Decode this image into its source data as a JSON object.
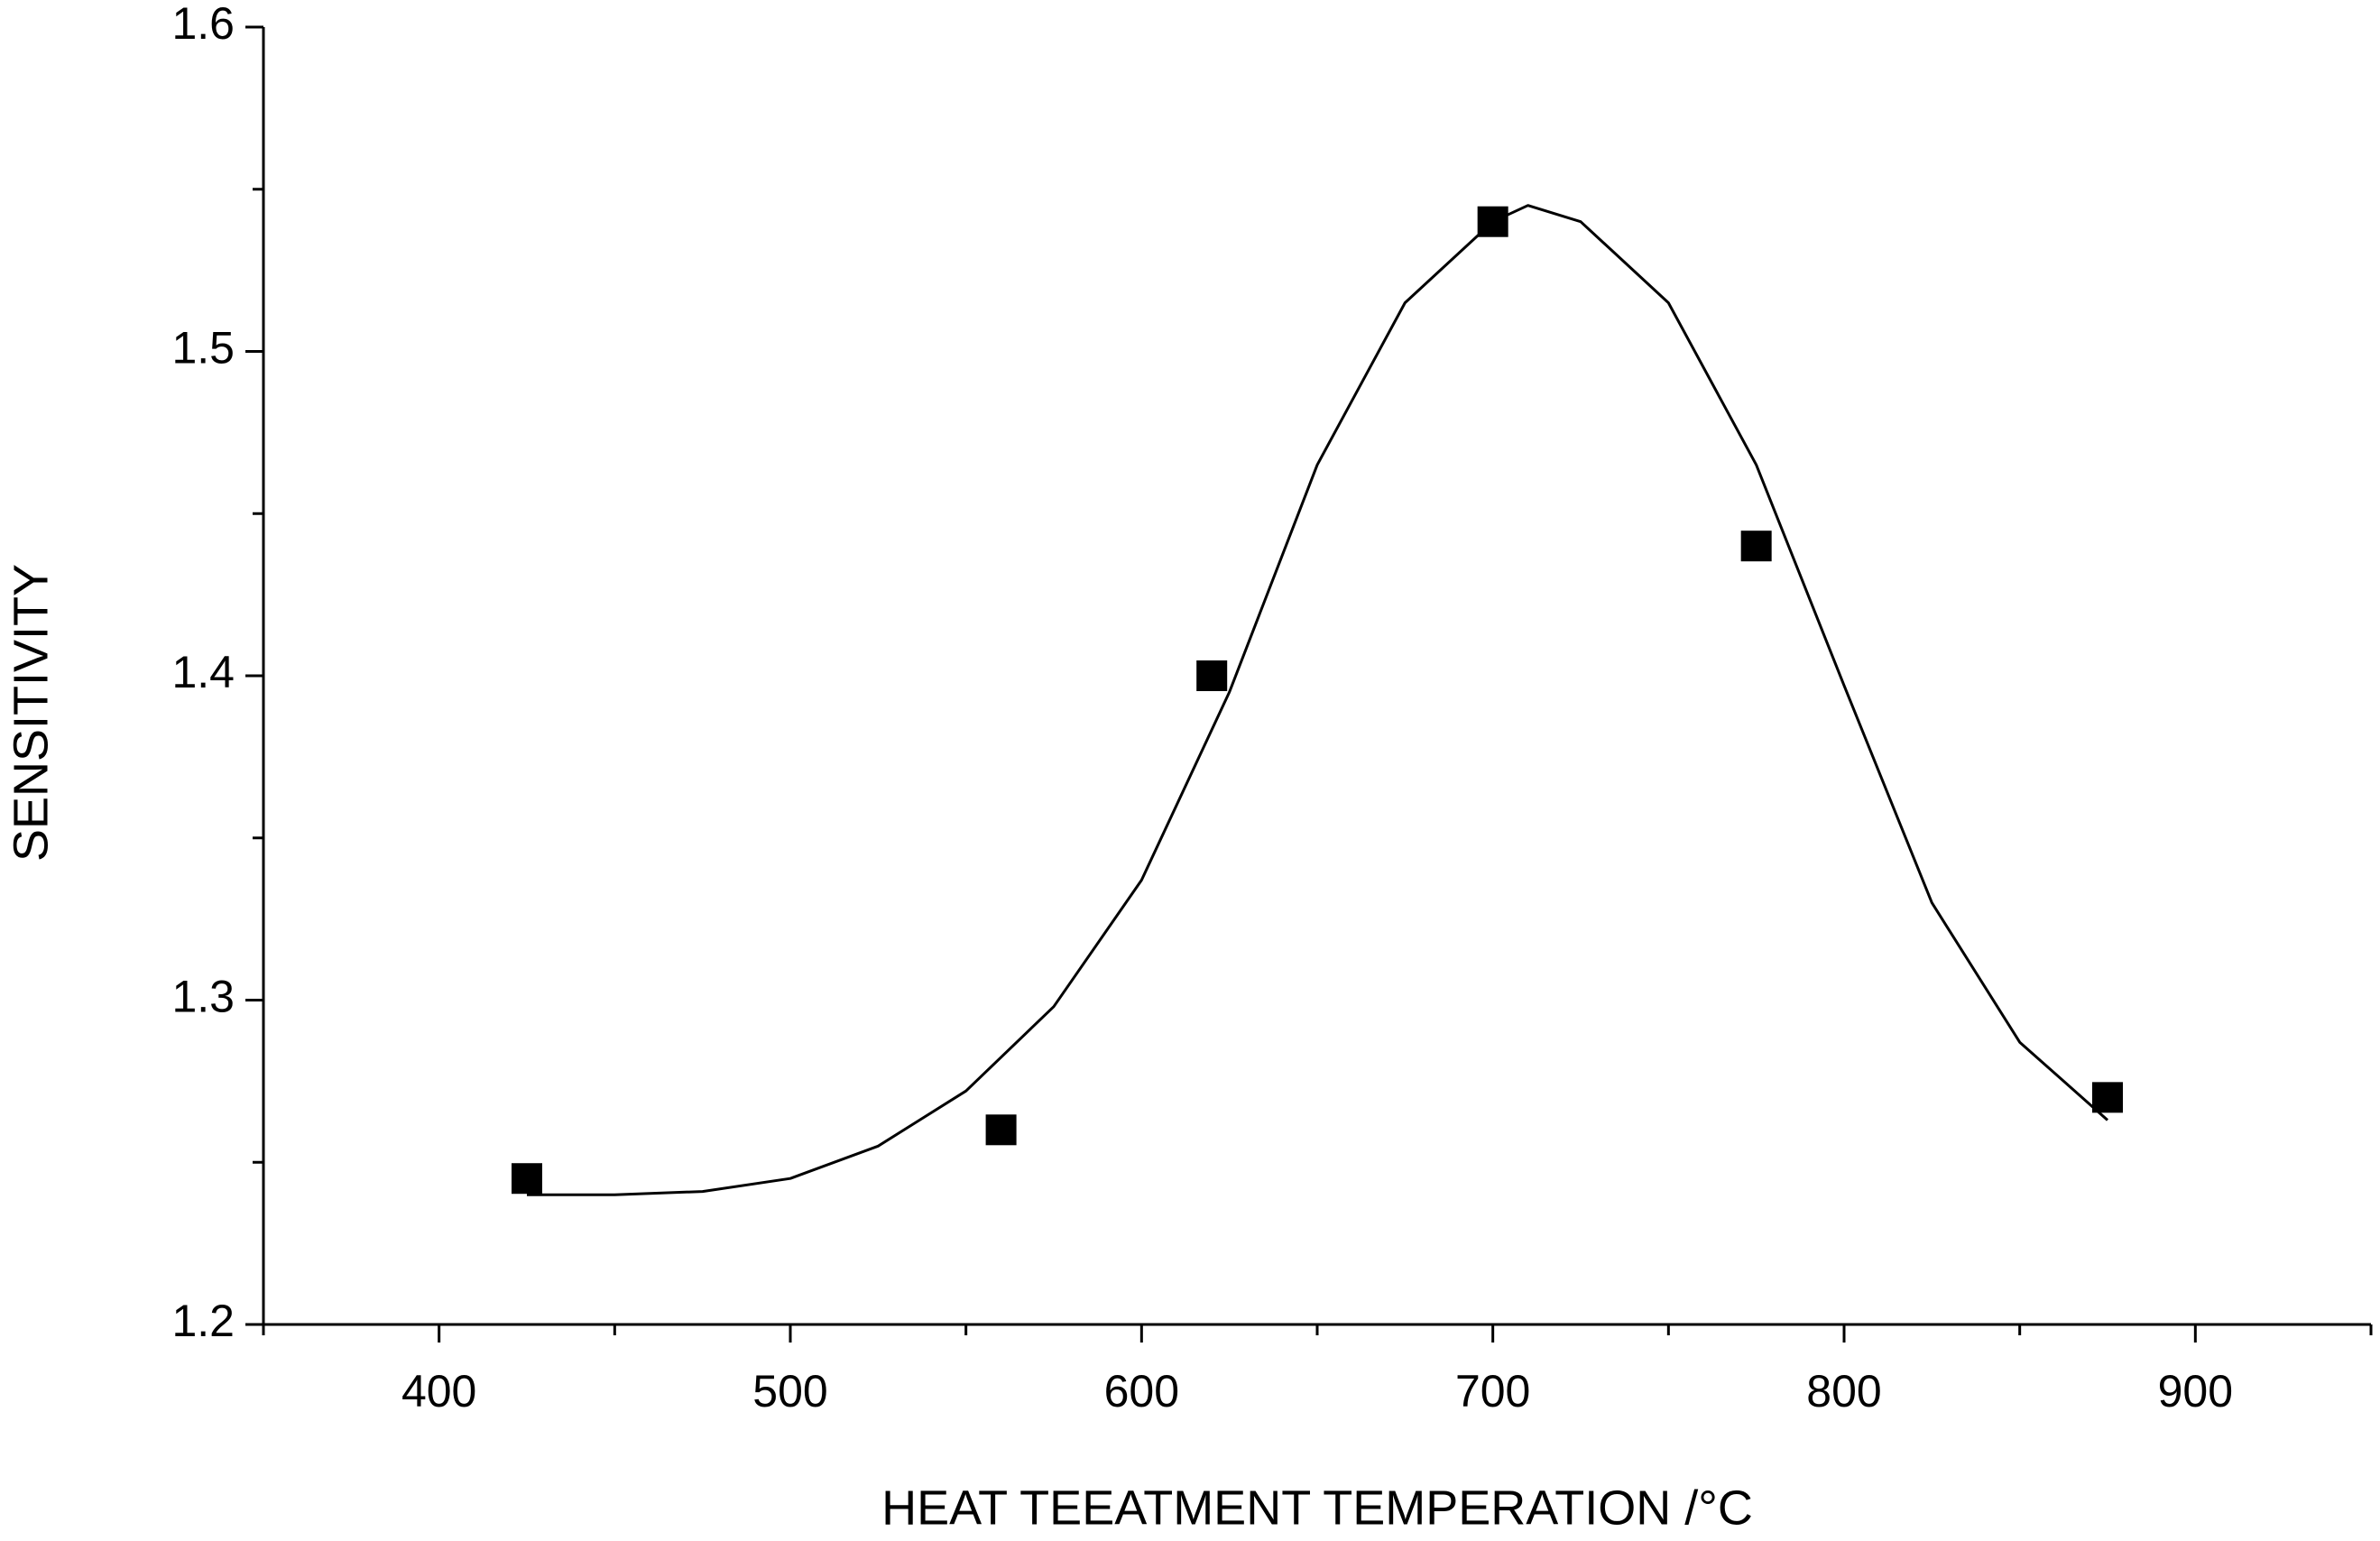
{
  "chart_data": {
    "type": "scatter",
    "x_label": "HEAT TEEATMENT TEMPERATION /°C",
    "y_label": "SENSITIVITY",
    "xlim": [
      350,
      950
    ],
    "xticks": [
      400,
      500,
      600,
      700,
      800,
      900
    ],
    "xminorticks": [
      350,
      450,
      550,
      650,
      750,
      850,
      950
    ],
    "ylim": [
      1.2,
      1.6
    ],
    "yticks": [
      1.2,
      1.3,
      1.4,
      1.5,
      1.6
    ],
    "yminorticks": [
      1.25,
      1.35,
      1.45,
      1.55
    ],
    "grid": false,
    "series": [
      {
        "kind": "marker",
        "color": "#000000",
        "x": [
          425,
          560,
          620,
          700,
          775,
          875
        ],
        "values": [
          1.245,
          1.26,
          1.4,
          1.54,
          1.44,
          1.27
        ]
      },
      {
        "kind": "line",
        "color": "#000000",
        "x": [
          425,
          450,
          475,
          500,
          525,
          550,
          575,
          600,
          625,
          650,
          675,
          700,
          710,
          725,
          750,
          775,
          800,
          825,
          850,
          875
        ],
        "values": [
          1.24,
          1.24,
          1.241,
          1.245,
          1.255,
          1.272,
          1.298,
          1.337,
          1.395,
          1.465,
          1.515,
          1.54,
          1.545,
          1.54,
          1.515,
          1.465,
          1.397,
          1.33,
          1.287,
          1.263
        ]
      }
    ]
  }
}
